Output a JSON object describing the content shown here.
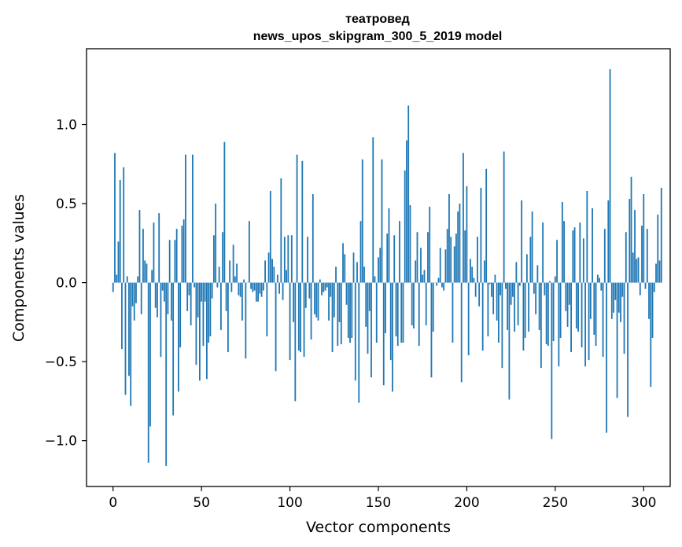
{
  "chart_data": {
    "type": "bar",
    "title": "театровед",
    "subtitle": "news_upos_skipgram_300_5_2019 model",
    "xlabel": "Vector components",
    "ylabel": "Components values",
    "xlim": [
      -15,
      315
    ],
    "ylim": [
      -1.29,
      1.48
    ],
    "xticks": [
      0,
      50,
      100,
      150,
      200,
      250,
      300
    ],
    "yticks": [
      -1.0,
      -0.5,
      0.0,
      0.5,
      1.0
    ],
    "ytick_labels": [
      "−1.0",
      "−0.5",
      "0.0",
      "0.5",
      "1.0"
    ],
    "grid": false,
    "legend": false,
    "bar_color": "#1f77b4",
    "values": [
      -0.06,
      0.82,
      0.05,
      0.26,
      0.65,
      -0.42,
      0.73,
      -0.71,
      0.04,
      -0.59,
      -0.78,
      -0.15,
      -0.24,
      -0.13,
      0.04,
      0.46,
      -0.2,
      0.34,
      0.14,
      0.12,
      -1.14,
      -0.91,
      0.08,
      0.38,
      -0.16,
      -0.22,
      0.44,
      -0.47,
      -0.05,
      -0.12,
      -1.16,
      -0.2,
      0.27,
      -0.24,
      -0.84,
      0.27,
      0.34,
      -0.69,
      -0.41,
      0.36,
      0.4,
      0.81,
      -0.18,
      -0.08,
      -0.27,
      0.81,
      -0.03,
      -0.52,
      -0.22,
      -0.62,
      -0.12,
      -0.4,
      -0.12,
      -0.61,
      -0.38,
      -0.34,
      -0.1,
      0.3,
      0.5,
      -0.03,
      0.1,
      -0.3,
      0.32,
      0.89,
      -0.18,
      -0.44,
      0.14,
      -0.06,
      0.24,
      0.04,
      0.12,
      -0.08,
      -0.09,
      -0.24,
      0.02,
      -0.48,
      0.0,
      0.39,
      -0.04,
      -0.06,
      -0.05,
      -0.12,
      -0.12,
      -0.07,
      -0.09,
      -0.05,
      0.14,
      -0.34,
      0.19,
      0.58,
      0.15,
      0.1,
      -0.56,
      0.05,
      -0.07,
      0.66,
      -0.11,
      0.29,
      0.08,
      0.3,
      -0.49,
      0.3,
      -0.25,
      -0.75,
      0.81,
      -0.43,
      -0.44,
      0.77,
      -0.47,
      -0.16,
      0.29,
      -0.1,
      -0.36,
      0.56,
      -0.2,
      -0.22,
      -0.24,
      0.02,
      -0.08,
      -0.06,
      -0.05,
      -0.03,
      -0.24,
      -0.09,
      -0.44,
      -0.22,
      0.1,
      -0.4,
      -0.25,
      -0.39,
      0.25,
      0.18,
      -0.14,
      -0.35,
      -0.38,
      -0.35,
      0.19,
      -0.62,
      0.13,
      -0.76,
      0.39,
      0.78,
      0.1,
      -0.28,
      -0.45,
      -0.18,
      -0.6,
      0.92,
      0.04,
      -0.38,
      0.16,
      0.22,
      0.78,
      -0.65,
      -0.32,
      0.31,
      0.47,
      -0.49,
      -0.69,
      0.3,
      -0.34,
      -0.4,
      0.39,
      -0.38,
      -0.38,
      0.71,
      0.9,
      1.12,
      0.49,
      -0.27,
      -0.29,
      0.14,
      0.32,
      -0.4,
      0.22,
      0.05,
      0.08,
      -0.27,
      0.32,
      0.48,
      -0.6,
      -0.31,
      0.0,
      -0.02,
      0.03,
      0.22,
      -0.03,
      -0.05,
      0.21,
      0.34,
      0.56,
      0.29,
      -0.38,
      0.23,
      0.31,
      0.45,
      0.5,
      -0.63,
      0.82,
      0.33,
      0.61,
      -0.46,
      0.15,
      0.1,
      0.03,
      -0.09,
      0.29,
      -0.15,
      0.6,
      -0.43,
      0.14,
      0.72,
      -0.34,
      -0.01,
      -0.09,
      -0.2,
      0.05,
      -0.24,
      -0.38,
      -0.08,
      -0.54,
      0.83,
      -0.04,
      -0.3,
      -0.74,
      -0.14,
      -0.09,
      -0.31,
      0.13,
      -0.27,
      -0.02,
      0.52,
      -0.43,
      -0.35,
      0.18,
      -0.31,
      0.29,
      0.45,
      -0.07,
      -0.2,
      0.11,
      -0.3,
      -0.54,
      0.38,
      -0.08,
      -0.39,
      -0.4,
      0.01,
      -0.99,
      -0.37,
      0.04,
      0.27,
      -0.53,
      -0.35,
      0.51,
      0.39,
      -0.18,
      -0.28,
      -0.14,
      -0.44,
      0.33,
      0.35,
      -0.29,
      -0.31,
      0.38,
      -0.41,
      0.28,
      -0.53,
      0.58,
      -0.49,
      -0.23,
      0.47,
      -0.33,
      -0.4,
      0.05,
      0.03,
      -0.05,
      -0.47,
      0.34,
      -0.95,
      0.52,
      1.35,
      -0.23,
      -0.19,
      -0.11,
      -0.73,
      -0.19,
      -0.25,
      -0.09,
      -0.45,
      0.32,
      -0.85,
      0.53,
      0.67,
      0.19,
      0.46,
      0.15,
      0.16,
      -0.08,
      0.36,
      0.56,
      -0.04,
      0.34,
      -0.23,
      -0.66,
      -0.35,
      -0.06,
      0.12,
      0.43,
      0.14,
      0.6
    ]
  }
}
